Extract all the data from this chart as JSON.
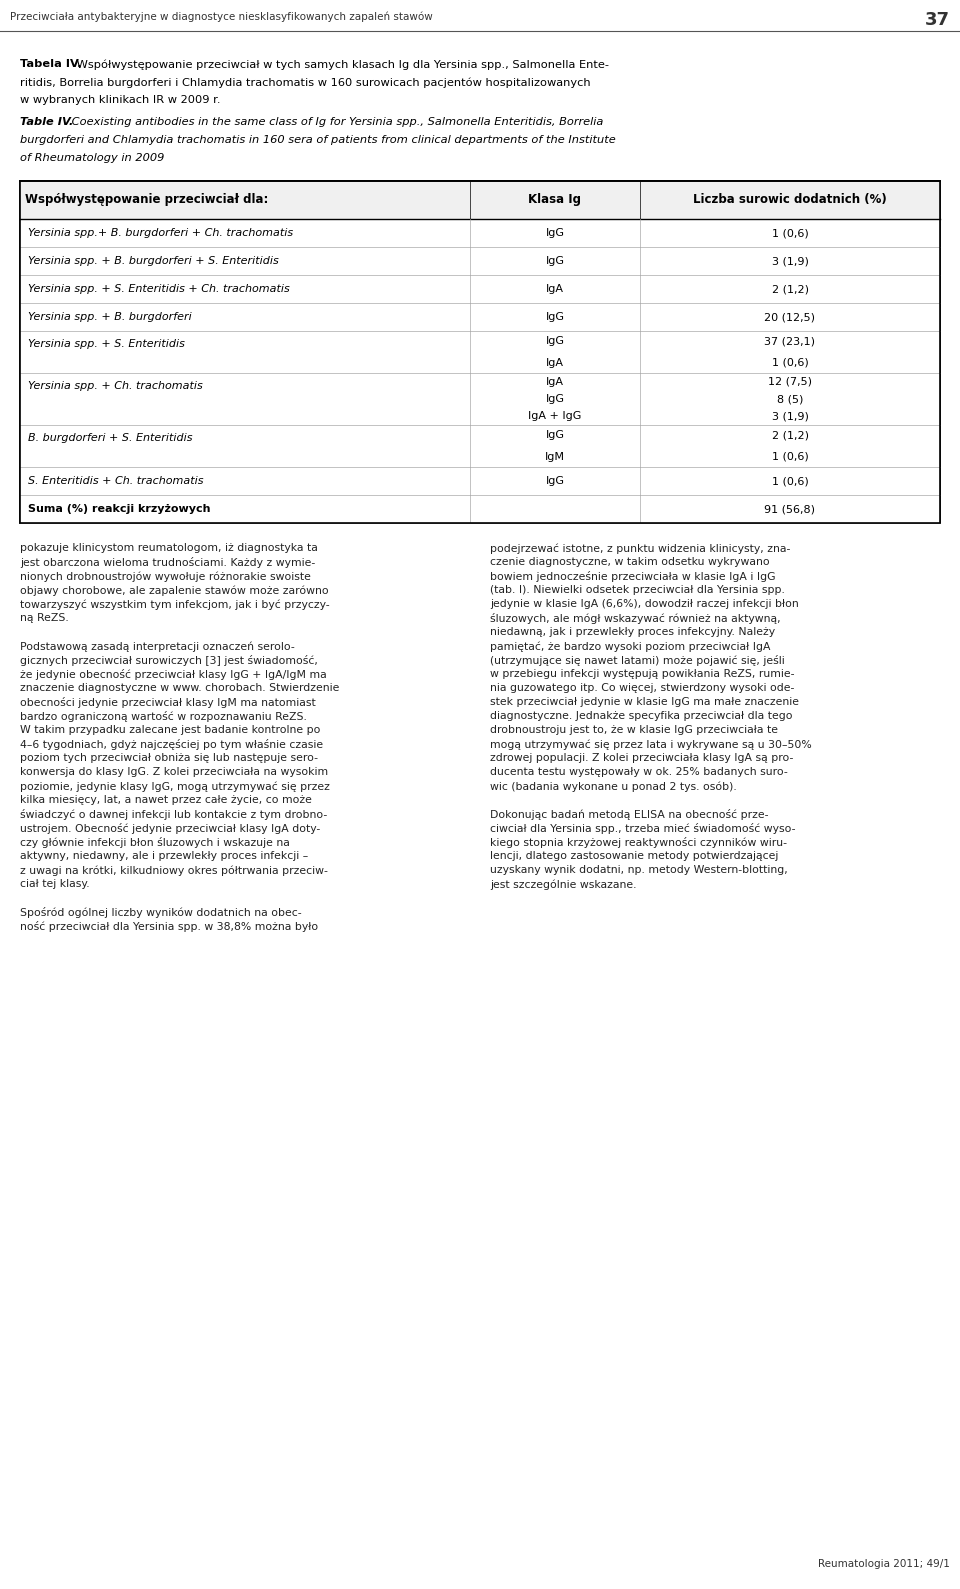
{
  "page_header": "Przeciwciała antybakteryjne w diagnostyce niesklasyfikowanych zapaleń stawów",
  "page_number": "37",
  "title_pl_bold": "Tabela IV.",
  "title_pl_rest": " Współwystępowanie przeciwciał w tych samych klasach Ig dla Yersinia spp., Salmonella Enteritidis, Borrelia burgdorferi i Chlamydia trachomatis w 160 surowicach pacjentów hospitalizowanych w wybranych klinikach IR w 2009 r.",
  "title_en_bold": "Table IV.",
  "title_en_rest": " Coexisting antibodies in the same class of Ig for Yersinia spp., Salmonella Enteritidis, Borrelia burgdorferi and Chlamydia trachomatis in 160 sera of patients from clinical departments of the Institute of Rheumatology in 2009",
  "col1_header": "Współwystępowanie przeciwciał dla:",
  "col2_header": "Klasa Ig",
  "col3_header": "Liczba surowic dodatnich (%)",
  "rows": [
    {
      "col1_normal": "Yersinia spp.",
      "col1_italic_suffix": "+ B. burgdorferi + Ch. trachomatis",
      "col1_prefix_italic": true,
      "col2": [
        "IgG"
      ],
      "col3": [
        "1 (0,6)"
      ]
    },
    {
      "col1_normal": "Yersinia spp. ",
      "col1_italic_suffix": "+ B. burgdorferi + S. Enteritidis",
      "col1_prefix_italic": true,
      "col2": [
        "IgG"
      ],
      "col3": [
        "3 (1,9)"
      ]
    },
    {
      "col1_normal": "Yersinia spp. ",
      "col1_italic_suffix": "+ S. Enteritidis + Ch. trachomatis",
      "col1_prefix_italic": true,
      "col2": [
        "IgA"
      ],
      "col3": [
        "2 (1,2)"
      ]
    },
    {
      "col1_normal": "Yersinia spp. ",
      "col1_italic_suffix": "+ B. burgdorferi",
      "col1_prefix_italic": true,
      "col2": [
        "IgG"
      ],
      "col3": [
        "20 (12,5)"
      ]
    },
    {
      "col1_normal": "Yersinia spp. ",
      "col1_italic_suffix": "+ S. Enteritidis",
      "col1_prefix_italic": true,
      "col2": [
        "IgG",
        "IgA"
      ],
      "col3": [
        "37 (23,1)",
        "1 (0,6)"
      ]
    },
    {
      "col1_normal": "Yersinia spp. ",
      "col1_italic_suffix": "+ Ch. trachomatis",
      "col1_prefix_italic": true,
      "col2": [
        "IgA",
        "IgG",
        "IgA + IgG"
      ],
      "col3": [
        "12 (7,5)",
        "8 (5)",
        "3 (1,9)"
      ]
    },
    {
      "col1_normal": "B. burgdorferi",
      "col1_italic_suffix": " + S. Enteritidis",
      "col1_prefix_italic": false,
      "col2": [
        "IgG",
        "IgM"
      ],
      "col3": [
        "2 (1,2)",
        "1 (0,6)"
      ]
    },
    {
      "col1_normal": "S. Enteritidis",
      "col1_italic_suffix": " + Ch. trachomatis",
      "col1_prefix_italic": false,
      "col2": [
        "IgG"
      ],
      "col3": [
        "1 (0,6)"
      ]
    },
    {
      "col1_normal": "Suma (%) reakcji krzyżowych",
      "col1_italic_suffix": "",
      "col1_prefix_italic": false,
      "col2": [
        ""
      ],
      "col3": [
        "91 (56,8)"
      ]
    }
  ],
  "bg_color": "#ffffff",
  "header_bg": "#ffffff",
  "table_border_color": "#000000",
  "text_color": "#000000",
  "font_size_header": 8.5,
  "font_size_body": 8.0,
  "font_size_title": 8.2,
  "font_size_page_header": 7.5
}
